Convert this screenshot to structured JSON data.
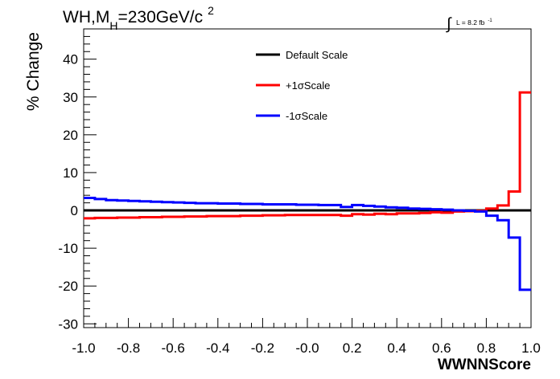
{
  "title": {
    "main": "WH,M",
    "sub": "H",
    "rest": "=230GeV/c",
    "sup": "2"
  },
  "lumi": {
    "integral": "∫",
    "text": "L = 8.2 fb",
    "sup": "-1"
  },
  "chart_data": {
    "type": "line",
    "xlabel": "WWNNScore",
    "ylabel": "% Change",
    "xlim": [
      -1.0,
      1.0
    ],
    "ylim": [
      -31,
      48
    ],
    "x_ticks": [
      "-1.0",
      "-0.8",
      "-0.6",
      "-0.4",
      "-0.2",
      "-0.0",
      "0.2",
      "0.4",
      "0.6",
      "0.8",
      "1.0"
    ],
    "y_ticks": [
      "-30",
      "-20",
      "-10",
      "0",
      "10",
      "20",
      "30",
      "40"
    ],
    "bin_edges": [
      -1.0,
      -0.95,
      -0.9,
      -0.85,
      -0.8,
      -0.75,
      -0.7,
      -0.65,
      -0.6,
      -0.55,
      -0.5,
      -0.45,
      -0.4,
      -0.35,
      -0.3,
      -0.25,
      -0.2,
      -0.15,
      -0.1,
      -0.05,
      0.0,
      0.05,
      0.1,
      0.15,
      0.2,
      0.25,
      0.3,
      0.35,
      0.4,
      0.45,
      0.5,
      0.55,
      0.6,
      0.65,
      0.7,
      0.75,
      0.8,
      0.85,
      0.9,
      0.95,
      1.0
    ],
    "legend_position": "top-center",
    "series": [
      {
        "name": "Default Scale",
        "color": "#000000",
        "values": [
          0,
          0,
          0,
          0,
          0,
          0,
          0,
          0,
          0,
          0,
          0,
          0,
          0,
          0,
          0,
          0,
          0,
          0,
          0,
          0,
          0,
          0,
          0,
          0,
          0,
          0,
          0,
          0,
          0,
          0,
          0,
          0,
          0,
          0,
          0,
          0,
          0,
          0,
          0,
          0
        ]
      },
      {
        "name": "+1σScale",
        "color": "#ff0000",
        "values": [
          -2.1,
          -2.0,
          -2.0,
          -1.9,
          -1.9,
          -1.8,
          -1.8,
          -1.7,
          -1.7,
          -1.6,
          -1.6,
          -1.5,
          -1.5,
          -1.5,
          -1.4,
          -1.4,
          -1.3,
          -1.3,
          -1.2,
          -1.2,
          -1.2,
          -1.2,
          -1.2,
          -1.4,
          -1.0,
          -1.1,
          -0.9,
          -1.0,
          -0.8,
          -0.8,
          -0.7,
          -0.5,
          -0.6,
          -0.3,
          -0.2,
          -0.1,
          0.5,
          1.3,
          5.0,
          31.2
        ]
      },
      {
        "name": "-1σScale",
        "color": "#0000ff",
        "values": [
          3.3,
          3.0,
          2.7,
          2.6,
          2.5,
          2.4,
          2.3,
          2.2,
          2.1,
          2.0,
          1.9,
          1.9,
          1.8,
          1.8,
          1.7,
          1.7,
          1.6,
          1.6,
          1.6,
          1.5,
          1.5,
          1.4,
          1.4,
          0.9,
          1.4,
          1.2,
          1.0,
          0.8,
          0.7,
          0.5,
          0.4,
          0.3,
          0.2,
          0.0,
          -0.1,
          -0.3,
          -1.4,
          -2.6,
          -7.2,
          -21.0
        ]
      }
    ]
  }
}
